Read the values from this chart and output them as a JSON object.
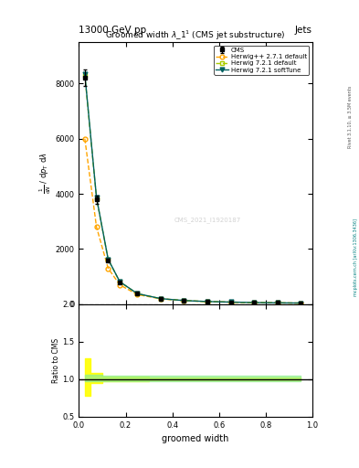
{
  "title": "Groomed width $\\lambda\\_1^1$ (CMS jet substructure)",
  "header_left": "13000 GeV pp",
  "header_right": "Jets",
  "xlabel": "groomed width",
  "ylabel_ratio": "Ratio to CMS",
  "watermark": "CMS_2021_I1920187",
  "right_label": "mcplots.cern.ch [arXiv:1306.3436]",
  "rivet_label": "Rivet 3.1.10, ≥ 3.5M events",
  "x_data": [
    0.025,
    0.075,
    0.125,
    0.175,
    0.25,
    0.35,
    0.45,
    0.55,
    0.65,
    0.75,
    0.85,
    0.95
  ],
  "cms_y": [
    8200,
    3800,
    1600,
    800,
    380,
    200,
    130,
    95,
    75,
    58,
    48,
    40
  ],
  "cms_err": [
    300,
    150,
    60,
    30,
    15,
    8,
    5,
    4,
    3,
    3,
    2,
    2
  ],
  "herwig_pp_y": [
    6000,
    2800,
    1300,
    700,
    350,
    195,
    128,
    94,
    73,
    57,
    47,
    39
  ],
  "herwig721_def_y": [
    8300,
    3850,
    1620,
    810,
    382,
    202,
    131,
    96,
    76,
    59,
    49,
    41
  ],
  "herwig721_soft_y": [
    8350,
    3870,
    1630,
    815,
    384,
    203,
    132,
    97,
    77,
    60,
    50,
    42
  ],
  "x_ratio": [
    0.025,
    0.075,
    0.125,
    0.175,
    0.25,
    0.35,
    0.45,
    0.55,
    0.65,
    0.75,
    0.85,
    0.95
  ],
  "cms_band_lo": [
    0.78,
    0.95,
    0.97,
    0.97,
    0.97,
    0.98,
    0.98,
    0.98,
    0.98,
    0.98,
    0.98,
    0.98
  ],
  "cms_band_hi": [
    1.28,
    1.08,
    1.03,
    1.03,
    1.03,
    1.02,
    1.02,
    1.02,
    1.02,
    1.02,
    1.02,
    1.02
  ],
  "herwig721_band_lo": [
    0.97,
    0.97,
    0.97,
    0.97,
    0.97,
    0.97,
    0.97,
    0.97,
    0.97,
    0.97,
    0.97,
    0.97
  ],
  "herwig721_band_hi": [
    1.06,
    1.06,
    1.05,
    1.05,
    1.04,
    1.04,
    1.04,
    1.04,
    1.04,
    1.04,
    1.04,
    1.04
  ],
  "color_cms": "#000000",
  "color_herwig_pp": "#FFA500",
  "color_herwig721_def": "#AACC00",
  "color_herwig721_soft": "#006060",
  "color_yellow_band": "#FFFF00",
  "color_green_band": "#90EE90",
  "ylim_main": [
    0,
    9500
  ],
  "ylim_ratio": [
    0.5,
    2.0
  ],
  "xlim": [
    0.0,
    1.0
  ],
  "yticks_main": [
    0,
    2000,
    4000,
    6000,
    8000
  ],
  "yticks_ratio": [
    0.5,
    1.0,
    1.5,
    2.0
  ]
}
